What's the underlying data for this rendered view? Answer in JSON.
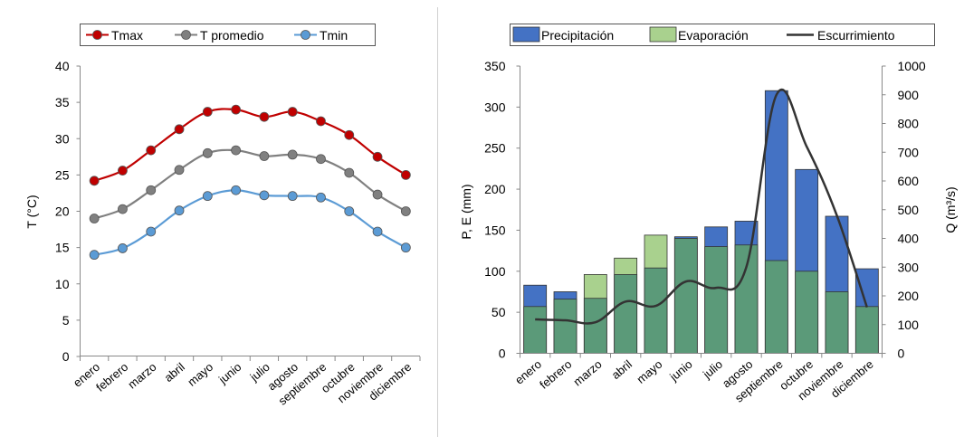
{
  "colors": {
    "tmax": "#c00000",
    "tprom": "#808080",
    "tmin": "#5b9bd5",
    "precip": "#4472c4",
    "evap": "#a9d18e",
    "overlap": "#5b9a79",
    "escurrimiento": "#333333"
  },
  "chart_data": [
    {
      "type": "line",
      "title": "",
      "xlabel": "",
      "ylabel": "T (°C)",
      "ylim": [
        0,
        40
      ],
      "yticks": [
        "0",
        "5",
        "10",
        "15",
        "20",
        "25",
        "30",
        "35",
        "40"
      ],
      "grid": false,
      "legend_position": "top",
      "categories": [
        "enero",
        "febrero",
        "marzo",
        "abril",
        "mayo",
        "junio",
        "julio",
        "agosto",
        "septiembre",
        "octubre",
        "noviembre",
        "diciembre"
      ],
      "series": [
        {
          "name": "Tmax",
          "values": [
            24.2,
            25.6,
            28.4,
            31.3,
            33.7,
            34.0,
            33.0,
            33.7,
            32.4,
            30.5,
            27.5,
            25.0
          ]
        },
        {
          "name": "T promedio",
          "values": [
            19.0,
            20.3,
            22.9,
            25.7,
            28.0,
            28.4,
            27.6,
            27.8,
            27.2,
            25.3,
            22.3,
            20.0
          ]
        },
        {
          "name": "Tmin",
          "values": [
            14.0,
            14.9,
            17.2,
            20.1,
            22.1,
            22.9,
            22.2,
            22.1,
            21.9,
            20.0,
            17.2,
            15.0
          ]
        }
      ]
    },
    {
      "type": "bar",
      "title": "",
      "xlabel": "",
      "ylabel": "P, E (mm)",
      "ylabel2": "Q (m³/s)",
      "ylim": [
        0,
        350
      ],
      "y2lim": [
        0,
        1000
      ],
      "yticks": [
        "0",
        "50",
        "100",
        "150",
        "200",
        "250",
        "300",
        "350"
      ],
      "y2ticks": [
        "0",
        "100",
        "200",
        "300",
        "400",
        "500",
        "600",
        "700",
        "800",
        "900",
        "1000"
      ],
      "grid": false,
      "legend_position": "top",
      "categories": [
        "enero",
        "febrero",
        "marzo",
        "abril",
        "mayo",
        "junio",
        "julio",
        "agosto",
        "septiembre",
        "octubre",
        "noviembre",
        "diciembre"
      ],
      "series": [
        {
          "name": "Precipitación",
          "axis": "left",
          "values": [
            83,
            75,
            67,
            96,
            104,
            142,
            154,
            161,
            320,
            224,
            167,
            103
          ]
        },
        {
          "name": "Evaporación",
          "axis": "left",
          "values": [
            57,
            66,
            96,
            116,
            144,
            140,
            130,
            132,
            113,
            100,
            75,
            57
          ]
        },
        {
          "name": "Escurrimiento",
          "axis": "right",
          "values": [
            118,
            115,
            108,
            180,
            165,
            250,
            228,
            300,
            900,
            720,
            480,
            160
          ]
        }
      ]
    }
  ]
}
